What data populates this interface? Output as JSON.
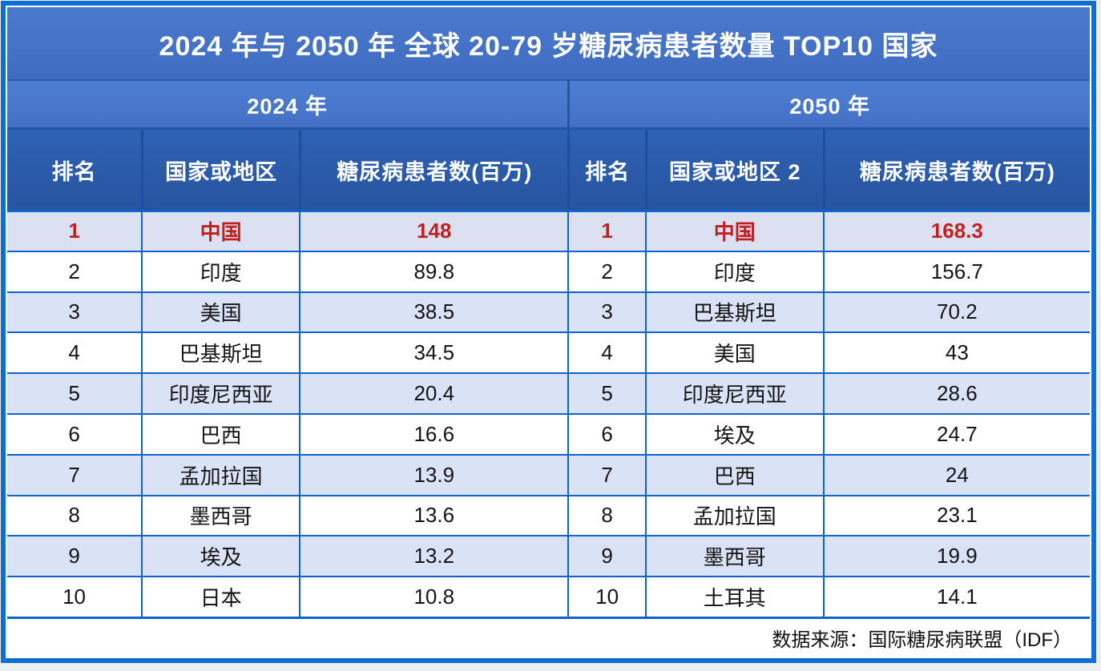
{
  "page": {
    "title": "2024 年与 2050 年 全球 20-79 岁糖尿病患者数量 TOP10 国家"
  },
  "header": {
    "year_2024": "2024 年",
    "year_2050": "2050 年"
  },
  "columns": {
    "rank": "排名",
    "country": "国家或地区",
    "country2": "国家或地区 2",
    "value": "糖尿病患者数(百万)"
  },
  "colors": {
    "frame_blue": "#0d6fd2",
    "band_blue": "#4471c5",
    "header_blue": "#28549f",
    "grid_blue": "#1063c8",
    "row_alt_blue": "#d9e3f5",
    "highlight_row_bg": "#dbe1f1",
    "highlight_red": "#c02020"
  },
  "table": {
    "rows": [
      {
        "rank1": "1",
        "country1": "中国",
        "value1": "148",
        "rank2": "1",
        "country2": "中国",
        "value2": "168.3"
      },
      {
        "rank1": "2",
        "country1": "印度",
        "value1": "89.8",
        "rank2": "2",
        "country2": "印度",
        "value2": "156.7"
      },
      {
        "rank1": "3",
        "country1": "美国",
        "value1": "38.5",
        "rank2": "3",
        "country2": "巴基斯坦",
        "value2": "70.2"
      },
      {
        "rank1": "4",
        "country1": "巴基斯坦",
        "value1": "34.5",
        "rank2": "4",
        "country2": "美国",
        "value2": "43"
      },
      {
        "rank1": "5",
        "country1": "印度尼西亚",
        "value1": "20.4",
        "rank2": "5",
        "country2": "印度尼西亚",
        "value2": "28.6"
      },
      {
        "rank1": "6",
        "country1": "巴西",
        "value1": "16.6",
        "rank2": "6",
        "country2": "埃及",
        "value2": "24.7"
      },
      {
        "rank1": "7",
        "country1": "孟加拉国",
        "value1": "13.9",
        "rank2": "7",
        "country2": "巴西",
        "value2": "24"
      },
      {
        "rank1": "8",
        "country1": "墨西哥",
        "value1": "13.6",
        "rank2": "8",
        "country2": "孟加拉国",
        "value2": "23.1"
      },
      {
        "rank1": "9",
        "country1": "埃及",
        "value1": "13.2",
        "rank2": "9",
        "country2": "墨西哥",
        "value2": "19.9"
      },
      {
        "rank1": "10",
        "country1": "日本",
        "value1": "10.8",
        "rank2": "10",
        "country2": "土耳其",
        "value2": "14.1"
      }
    ]
  },
  "footer": {
    "source": "数据来源：国际糖尿病联盟（IDF）"
  },
  "chart_data": {
    "type": "table",
    "title": "2024 年与 2050 年 全球 20-79 岁糖尿病患者数量 TOP10 国家",
    "sections": [
      {
        "year": "2024 年",
        "columns": [
          "排名",
          "国家或地区",
          "糖尿病患者数(百万)"
        ],
        "rows": [
          [
            1,
            "中国",
            148
          ],
          [
            2,
            "印度",
            89.8
          ],
          [
            3,
            "美国",
            38.5
          ],
          [
            4,
            "巴基斯坦",
            34.5
          ],
          [
            5,
            "印度尼西亚",
            20.4
          ],
          [
            6,
            "巴西",
            16.6
          ],
          [
            7,
            "孟加拉国",
            13.9
          ],
          [
            8,
            "墨西哥",
            13.6
          ],
          [
            9,
            "埃及",
            13.2
          ],
          [
            10,
            "日本",
            10.8
          ]
        ]
      },
      {
        "year": "2050 年",
        "columns": [
          "排名",
          "国家或地区 2",
          "糖尿病患者数(百万)"
        ],
        "rows": [
          [
            1,
            "中国",
            168.3
          ],
          [
            2,
            "印度",
            156.7
          ],
          [
            3,
            "巴基斯坦",
            70.2
          ],
          [
            4,
            "美国",
            43
          ],
          [
            5,
            "印度尼西亚",
            28.6
          ],
          [
            6,
            "埃及",
            24.7
          ],
          [
            7,
            "巴西",
            24
          ],
          [
            8,
            "孟加拉国",
            23.1
          ],
          [
            9,
            "墨西哥",
            19.9
          ],
          [
            10,
            "土耳其",
            14.1
          ]
        ]
      }
    ],
    "highlighted_row_rank": 1,
    "source": "数据来源：国际糖尿病联盟（IDF）"
  }
}
